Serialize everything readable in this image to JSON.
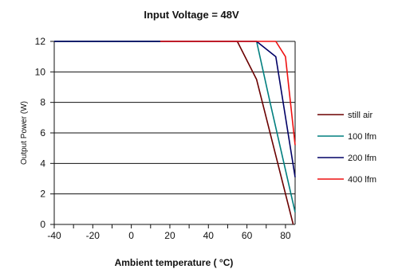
{
  "chart_data": {
    "type": "line",
    "title": "Input Voltage = 48V",
    "xlabel": "Ambient temperature ( °C)",
    "ylabel": "Output Power (W)",
    "xlim": [
      -40,
      85
    ],
    "ylim": [
      0,
      12
    ],
    "xticks": [
      -40,
      -20,
      0,
      20,
      40,
      60,
      80
    ],
    "yticks": [
      0,
      2,
      4,
      6,
      8,
      10,
      12
    ],
    "grid": "horizontal",
    "legend_position": "right",
    "series": [
      {
        "name": "still air",
        "color": "#6b0000",
        "points": [
          [
            -40,
            12
          ],
          [
            55,
            12
          ],
          [
            65,
            9.5
          ],
          [
            84,
            0
          ]
        ]
      },
      {
        "name": "100 lfm",
        "color": "#007f7f",
        "points": [
          [
            -40,
            12
          ],
          [
            65,
            12
          ],
          [
            72,
            8
          ],
          [
            85,
            0.8
          ]
        ]
      },
      {
        "name": "200 lfm",
        "color": "#000066",
        "points": [
          [
            -40,
            12
          ],
          [
            65,
            12
          ],
          [
            75,
            11
          ],
          [
            85,
            3.1
          ]
        ]
      },
      {
        "name": "400 lfm",
        "color": "#ee1111",
        "points": [
          [
            15,
            12
          ],
          [
            75,
            12
          ],
          [
            80,
            11
          ],
          [
            85,
            5.2
          ]
        ]
      }
    ]
  }
}
